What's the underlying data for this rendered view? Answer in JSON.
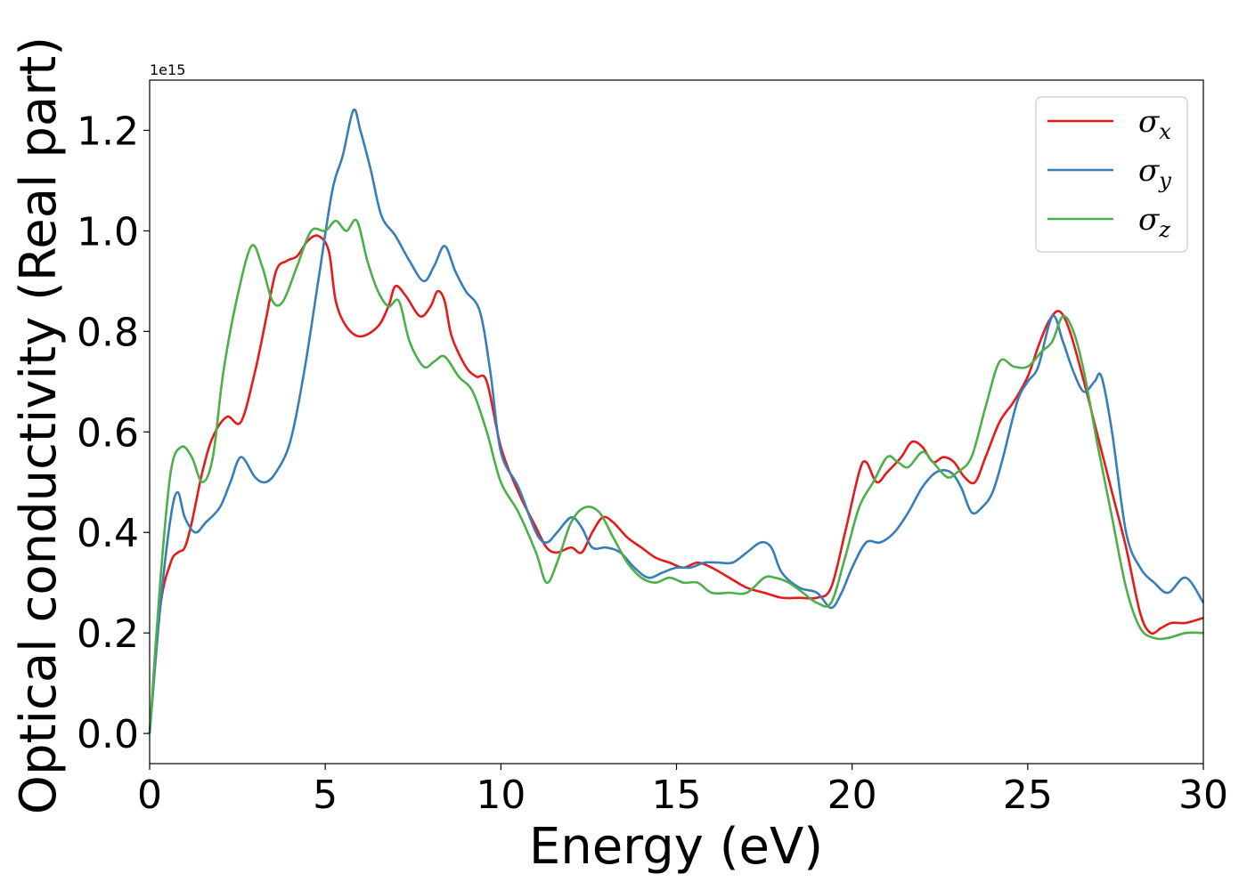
{
  "chart_data": {
    "type": "line",
    "title": "",
    "xlabel": "Energy (eV)",
    "ylabel": "Optical conductivity (Real part)",
    "y_offset_label": "1e15",
    "xlim": [
      0,
      30
    ],
    "ylim": [
      -0.06,
      1.3
    ],
    "xticks": [
      0,
      5,
      10,
      15,
      20,
      25,
      30
    ],
    "xtick_labels": [
      "0",
      "5",
      "10",
      "15",
      "20",
      "25",
      "30"
    ],
    "yticks": [
      0.0,
      0.2,
      0.4,
      0.6,
      0.8,
      1.0,
      1.2
    ],
    "ytick_labels": [
      "0.0",
      "0.2",
      "0.4",
      "0.6",
      "0.8",
      "1.0",
      "1.2"
    ],
    "grid": false,
    "legend_position": "top-right",
    "series": [
      {
        "name": "x",
        "legend_symbol": "σ",
        "legend_subscript": "x",
        "color": "#e41a1c",
        "points": [
          [
            0,
            0.0
          ],
          [
            0.3,
            0.25
          ],
          [
            0.6,
            0.34
          ],
          [
            0.8,
            0.36
          ],
          [
            1.0,
            0.37
          ],
          [
            1.2,
            0.42
          ],
          [
            1.5,
            0.52
          ],
          [
            1.8,
            0.59
          ],
          [
            2.2,
            0.63
          ],
          [
            2.6,
            0.62
          ],
          [
            3.0,
            0.72
          ],
          [
            3.3,
            0.82
          ],
          [
            3.6,
            0.92
          ],
          [
            3.9,
            0.94
          ],
          [
            4.2,
            0.95
          ],
          [
            4.5,
            0.98
          ],
          [
            4.8,
            0.99
          ],
          [
            5.1,
            0.96
          ],
          [
            5.3,
            0.86
          ],
          [
            5.6,
            0.81
          ],
          [
            6.0,
            0.79
          ],
          [
            6.5,
            0.81
          ],
          [
            6.8,
            0.85
          ],
          [
            7.0,
            0.89
          ],
          [
            7.3,
            0.87
          ],
          [
            7.7,
            0.83
          ],
          [
            8.0,
            0.85
          ],
          [
            8.2,
            0.88
          ],
          [
            8.4,
            0.86
          ],
          [
            8.6,
            0.79
          ],
          [
            9.0,
            0.73
          ],
          [
            9.3,
            0.71
          ],
          [
            9.6,
            0.7
          ],
          [
            10.0,
            0.57
          ],
          [
            10.5,
            0.48
          ],
          [
            11.0,
            0.41
          ],
          [
            11.3,
            0.37
          ],
          [
            11.6,
            0.36
          ],
          [
            12.0,
            0.37
          ],
          [
            12.3,
            0.36
          ],
          [
            12.6,
            0.4
          ],
          [
            12.9,
            0.43
          ],
          [
            13.2,
            0.42
          ],
          [
            13.6,
            0.39
          ],
          [
            14.0,
            0.37
          ],
          [
            14.4,
            0.35
          ],
          [
            14.8,
            0.34
          ],
          [
            15.2,
            0.33
          ],
          [
            15.6,
            0.34
          ],
          [
            16.0,
            0.33
          ],
          [
            16.5,
            0.31
          ],
          [
            17.0,
            0.29
          ],
          [
            17.5,
            0.28
          ],
          [
            18.0,
            0.27
          ],
          [
            18.5,
            0.27
          ],
          [
            19.0,
            0.27
          ],
          [
            19.4,
            0.29
          ],
          [
            19.8,
            0.4
          ],
          [
            20.2,
            0.52
          ],
          [
            20.4,
            0.54
          ],
          [
            20.7,
            0.5
          ],
          [
            21.0,
            0.52
          ],
          [
            21.4,
            0.55
          ],
          [
            21.7,
            0.58
          ],
          [
            22.0,
            0.57
          ],
          [
            22.3,
            0.54
          ],
          [
            22.6,
            0.55
          ],
          [
            22.9,
            0.54
          ],
          [
            23.2,
            0.51
          ],
          [
            23.5,
            0.5
          ],
          [
            23.8,
            0.55
          ],
          [
            24.2,
            0.62
          ],
          [
            24.6,
            0.66
          ],
          [
            25.0,
            0.71
          ],
          [
            25.3,
            0.77
          ],
          [
            25.6,
            0.82
          ],
          [
            25.9,
            0.84
          ],
          [
            26.2,
            0.8
          ],
          [
            26.6,
            0.7
          ],
          [
            27.0,
            0.59
          ],
          [
            27.4,
            0.48
          ],
          [
            27.8,
            0.37
          ],
          [
            28.2,
            0.24
          ],
          [
            28.5,
            0.2
          ],
          [
            28.8,
            0.21
          ],
          [
            29.1,
            0.22
          ],
          [
            29.5,
            0.22
          ],
          [
            30.0,
            0.23
          ]
        ]
      },
      {
        "name": "y",
        "legend_symbol": "σ",
        "legend_subscript": "y",
        "color": "#377eb8",
        "points": [
          [
            0,
            0.0
          ],
          [
            0.3,
            0.25
          ],
          [
            0.6,
            0.43
          ],
          [
            0.8,
            0.48
          ],
          [
            1.0,
            0.43
          ],
          [
            1.3,
            0.4
          ],
          [
            1.6,
            0.42
          ],
          [
            2.0,
            0.45
          ],
          [
            2.3,
            0.5
          ],
          [
            2.6,
            0.55
          ],
          [
            3.0,
            0.51
          ],
          [
            3.3,
            0.5
          ],
          [
            3.6,
            0.52
          ],
          [
            4.0,
            0.58
          ],
          [
            4.4,
            0.72
          ],
          [
            4.8,
            0.9
          ],
          [
            5.2,
            1.08
          ],
          [
            5.5,
            1.15
          ],
          [
            5.8,
            1.24
          ],
          [
            6.0,
            1.2
          ],
          [
            6.3,
            1.12
          ],
          [
            6.6,
            1.03
          ],
          [
            7.0,
            0.99
          ],
          [
            7.4,
            0.94
          ],
          [
            7.8,
            0.9
          ],
          [
            8.1,
            0.93
          ],
          [
            8.4,
            0.97
          ],
          [
            8.7,
            0.92
          ],
          [
            9.0,
            0.88
          ],
          [
            9.4,
            0.84
          ],
          [
            9.7,
            0.72
          ],
          [
            10.0,
            0.56
          ],
          [
            10.5,
            0.49
          ],
          [
            11.0,
            0.4
          ],
          [
            11.3,
            0.38
          ],
          [
            11.6,
            0.4
          ],
          [
            12.0,
            0.43
          ],
          [
            12.3,
            0.41
          ],
          [
            12.6,
            0.37
          ],
          [
            13.0,
            0.37
          ],
          [
            13.4,
            0.36
          ],
          [
            13.8,
            0.33
          ],
          [
            14.2,
            0.31
          ],
          [
            14.6,
            0.32
          ],
          [
            15.0,
            0.33
          ],
          [
            15.4,
            0.33
          ],
          [
            15.8,
            0.34
          ],
          [
            16.2,
            0.34
          ],
          [
            16.6,
            0.34
          ],
          [
            17.0,
            0.36
          ],
          [
            17.4,
            0.38
          ],
          [
            17.7,
            0.37
          ],
          [
            18.0,
            0.32
          ],
          [
            18.5,
            0.29
          ],
          [
            19.0,
            0.28
          ],
          [
            19.4,
            0.25
          ],
          [
            19.7,
            0.28
          ],
          [
            20.0,
            0.33
          ],
          [
            20.4,
            0.38
          ],
          [
            20.8,
            0.38
          ],
          [
            21.2,
            0.4
          ],
          [
            21.6,
            0.44
          ],
          [
            22.0,
            0.49
          ],
          [
            22.4,
            0.52
          ],
          [
            22.8,
            0.52
          ],
          [
            23.1,
            0.49
          ],
          [
            23.4,
            0.44
          ],
          [
            23.7,
            0.45
          ],
          [
            24.0,
            0.48
          ],
          [
            24.3,
            0.55
          ],
          [
            24.7,
            0.66
          ],
          [
            25.0,
            0.7
          ],
          [
            25.3,
            0.73
          ],
          [
            25.7,
            0.83
          ],
          [
            26.0,
            0.78
          ],
          [
            26.3,
            0.72
          ],
          [
            26.6,
            0.68
          ],
          [
            26.9,
            0.7
          ],
          [
            27.1,
            0.71
          ],
          [
            27.4,
            0.6
          ],
          [
            27.8,
            0.4
          ],
          [
            28.2,
            0.33
          ],
          [
            28.6,
            0.3
          ],
          [
            29.0,
            0.28
          ],
          [
            29.5,
            0.31
          ],
          [
            30.0,
            0.26
          ]
        ]
      },
      {
        "name": "z",
        "legend_symbol": "σ",
        "legend_subscript": "z",
        "color": "#4daf4a",
        "points": [
          [
            0,
            0.0
          ],
          [
            0.3,
            0.3
          ],
          [
            0.6,
            0.52
          ],
          [
            0.9,
            0.57
          ],
          [
            1.2,
            0.55
          ],
          [
            1.5,
            0.5
          ],
          [
            1.8,
            0.55
          ],
          [
            2.1,
            0.72
          ],
          [
            2.5,
            0.87
          ],
          [
            2.9,
            0.97
          ],
          [
            3.2,
            0.93
          ],
          [
            3.5,
            0.86
          ],
          [
            3.8,
            0.86
          ],
          [
            4.2,
            0.93
          ],
          [
            4.6,
            1.0
          ],
          [
            5.0,
            1.0
          ],
          [
            5.3,
            1.02
          ],
          [
            5.6,
            1.0
          ],
          [
            5.9,
            1.02
          ],
          [
            6.2,
            0.94
          ],
          [
            6.5,
            0.88
          ],
          [
            6.8,
            0.85
          ],
          [
            7.1,
            0.86
          ],
          [
            7.4,
            0.78
          ],
          [
            7.8,
            0.73
          ],
          [
            8.1,
            0.74
          ],
          [
            8.4,
            0.75
          ],
          [
            8.8,
            0.71
          ],
          [
            9.2,
            0.68
          ],
          [
            9.6,
            0.6
          ],
          [
            10.0,
            0.5
          ],
          [
            10.5,
            0.44
          ],
          [
            11.0,
            0.36
          ],
          [
            11.3,
            0.3
          ],
          [
            11.6,
            0.34
          ],
          [
            12.0,
            0.42
          ],
          [
            12.4,
            0.45
          ],
          [
            12.8,
            0.44
          ],
          [
            13.2,
            0.39
          ],
          [
            13.6,
            0.34
          ],
          [
            14.0,
            0.31
          ],
          [
            14.4,
            0.3
          ],
          [
            14.8,
            0.31
          ],
          [
            15.2,
            0.3
          ],
          [
            15.6,
            0.3
          ],
          [
            16.0,
            0.28
          ],
          [
            16.5,
            0.28
          ],
          [
            17.0,
            0.28
          ],
          [
            17.5,
            0.31
          ],
          [
            17.8,
            0.31
          ],
          [
            18.2,
            0.3
          ],
          [
            18.6,
            0.28
          ],
          [
            19.0,
            0.26
          ],
          [
            19.4,
            0.26
          ],
          [
            19.8,
            0.35
          ],
          [
            20.2,
            0.45
          ],
          [
            20.6,
            0.5
          ],
          [
            21.0,
            0.55
          ],
          [
            21.3,
            0.54
          ],
          [
            21.6,
            0.53
          ],
          [
            22.0,
            0.56
          ],
          [
            22.3,
            0.54
          ],
          [
            22.7,
            0.51
          ],
          [
            23.0,
            0.52
          ],
          [
            23.4,
            0.55
          ],
          [
            23.8,
            0.65
          ],
          [
            24.2,
            0.74
          ],
          [
            24.6,
            0.73
          ],
          [
            25.0,
            0.73
          ],
          [
            25.4,
            0.76
          ],
          [
            25.7,
            0.78
          ],
          [
            26.0,
            0.83
          ],
          [
            26.3,
            0.8
          ],
          [
            26.6,
            0.72
          ],
          [
            27.0,
            0.57
          ],
          [
            27.4,
            0.43
          ],
          [
            27.8,
            0.29
          ],
          [
            28.2,
            0.21
          ],
          [
            28.6,
            0.19
          ],
          [
            29.0,
            0.19
          ],
          [
            29.5,
            0.2
          ],
          [
            30.0,
            0.2
          ]
        ]
      }
    ]
  }
}
